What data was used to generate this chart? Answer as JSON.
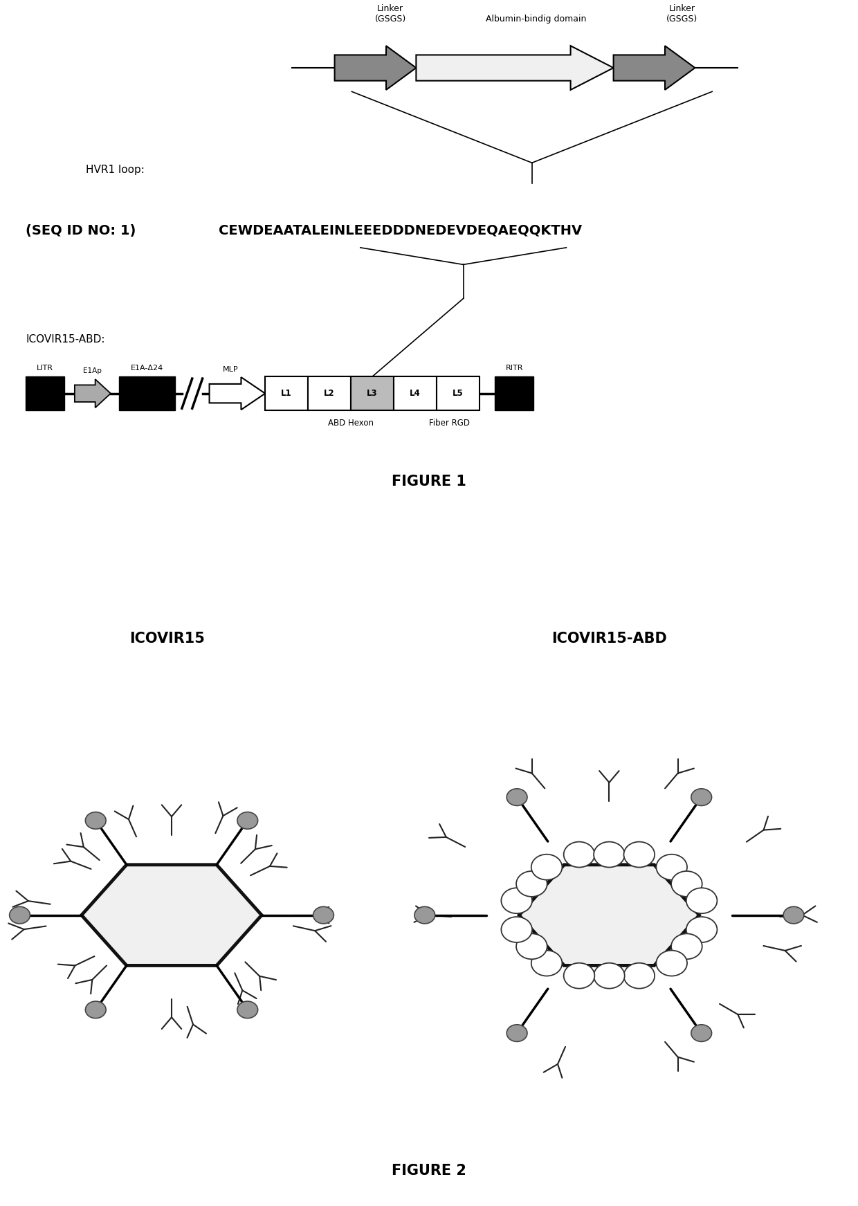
{
  "fig_width": 12.4,
  "fig_height": 17.43,
  "bg_color": "#ffffff",
  "figure1_title": "FIGURE 1",
  "figure2_title": "FIGURE 2",
  "seq_id": "(SEQ ID NO: 1)  ",
  "seq": "CEWDEAATALEINLEEEDDDNEDEVDEQAEQQKTHV",
  "hvr1_label": "HVR1 loop:",
  "icovir_abd_label": "ICOVIR15-ABD:",
  "linker_label1": "Linker\n(GSGS)",
  "linker_label2": "Linker\n(GSGS)",
  "albumin_label": "Albumin-bindig domain",
  "icovir15_label": "ICOVIR15",
  "icovir15_abd_label": "ICOVIR15-ABD",
  "abd_hexon_label": "ABD Hexon",
  "fiber_rgd_label": "Fiber RGD",
  "litr_label": "LITR",
  "e1ap_label": "E1Ap",
  "e1a_label": "E1A-Δ24",
  "mlp_label": "MLP",
  "ritr_label": "RITR"
}
